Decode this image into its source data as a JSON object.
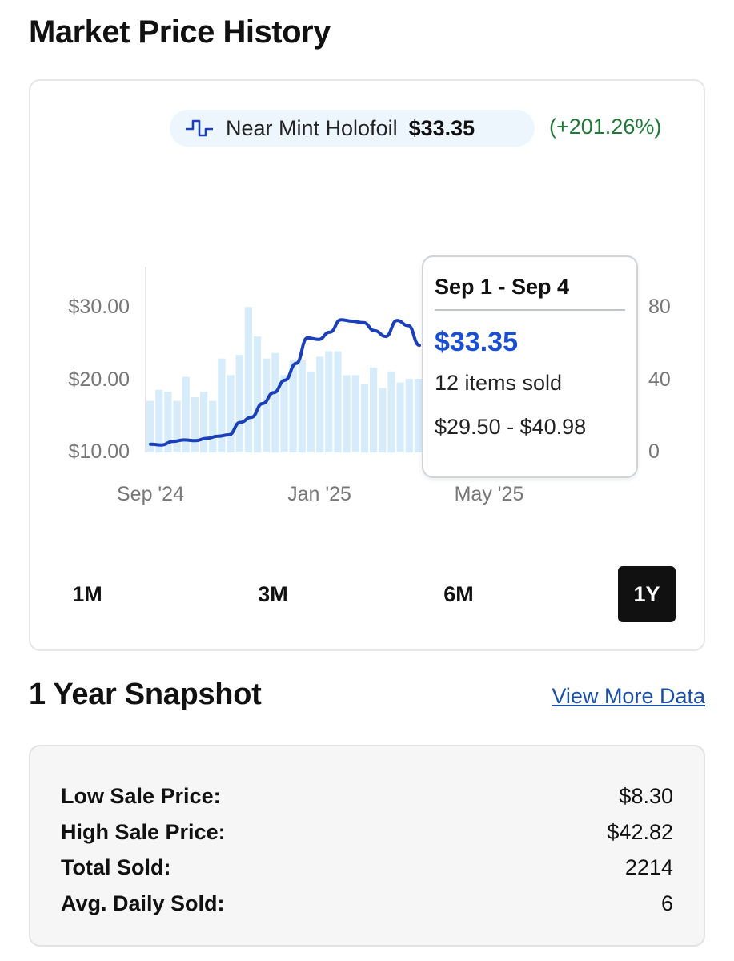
{
  "page": {
    "title": "Market Price History"
  },
  "legend": {
    "icon": "step-line-icon",
    "label": "Near Mint Holofoil",
    "price": "$33.35",
    "change": "(+201.26%)",
    "change_color": "#1f7a3a"
  },
  "chart_data": {
    "type": "bar",
    "overlay": "line",
    "x_ticks": [
      "Sep '24",
      "Jan '25",
      "May '25"
    ],
    "y_left_ticks": [
      "$30.00",
      "$20.00",
      "$10.00"
    ],
    "y_right_ticks": [
      "80",
      "40",
      "0"
    ],
    "y_left_range": [
      8.3,
      33.35
    ],
    "y_right_range": [
      0,
      100
    ],
    "bar_color": "#d6ecfb",
    "line_color": "#1a3fb8",
    "volume_bars": [
      28,
      34,
      33,
      28,
      41,
      30,
      33,
      28,
      51,
      42,
      53,
      79,
      63,
      51,
      54,
      42,
      50,
      50,
      44,
      52,
      55,
      55,
      42,
      42,
      37,
      46,
      35,
      44,
      38,
      40,
      40
    ],
    "price_line": [
      10.9,
      10.8,
      11.3,
      11.5,
      11.4,
      11.7,
      12.0,
      12.2,
      13.9,
      14.6,
      16.5,
      18.0,
      19.7,
      22.0,
      25.5,
      25.3,
      26.3,
      28.0,
      27.8,
      27.6,
      26.5,
      25.7,
      27.9,
      27.2,
      24.5
    ]
  },
  "tooltip": {
    "title": "Sep 1 - Sep 4",
    "price": "$33.35",
    "items_sold": "12 items sold",
    "range": "$29.50 - $40.98"
  },
  "ranges": [
    {
      "label": "1M",
      "active": false
    },
    {
      "label": "3M",
      "active": false
    },
    {
      "label": "6M",
      "active": false
    },
    {
      "label": "1Y",
      "active": true
    }
  ],
  "snapshot": {
    "title": "1 Year Snapshot",
    "view_more": "View More Data",
    "stats": [
      {
        "label": "Low Sale Price:",
        "value": "$8.30"
      },
      {
        "label": "High Sale Price:",
        "value": "$42.82"
      },
      {
        "label": "Total Sold:",
        "value": "2214"
      },
      {
        "label": "Avg. Daily Sold:",
        "value": "6"
      }
    ]
  }
}
